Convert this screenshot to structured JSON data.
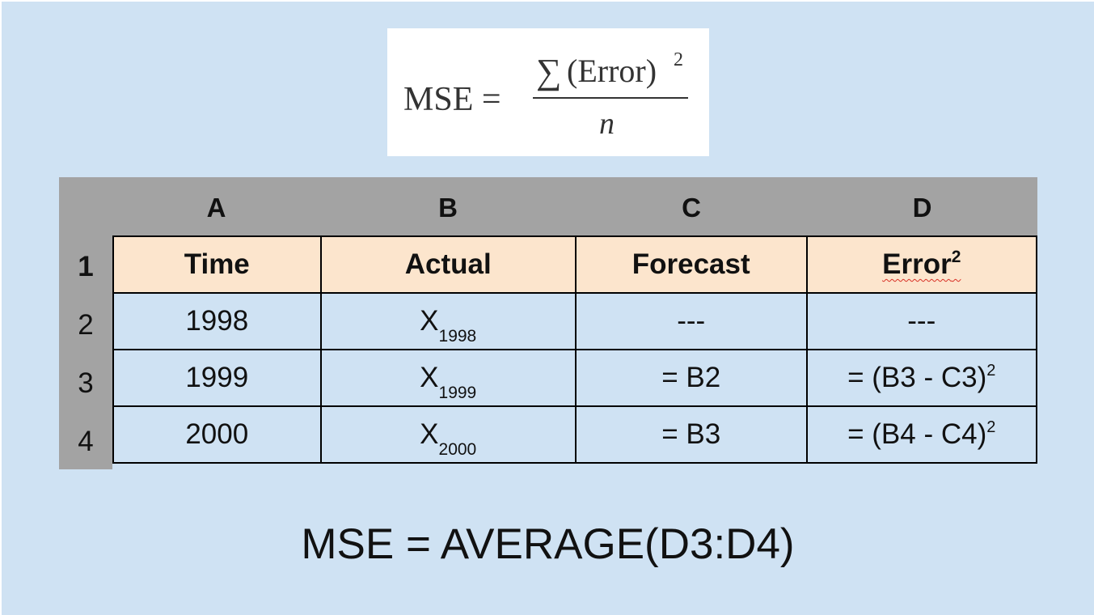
{
  "formula_image": {
    "lhs": "MSE =",
    "sigma": "∑",
    "numerator": "(Error)",
    "exponent": "2",
    "denominator": "n"
  },
  "spreadsheet": {
    "column_letters": [
      "A",
      "B",
      "C",
      "D"
    ],
    "row_numbers": [
      "1",
      "2",
      "3",
      "4"
    ],
    "header": {
      "time": "Time",
      "actual": "Actual",
      "forecast": "Forecast",
      "error_base": "Error",
      "error_sup": "2"
    },
    "rows": [
      {
        "time": "1998",
        "actual_base": "X",
        "actual_sub": "1998",
        "forecast": "---",
        "error_main": "---",
        "error_sup": ""
      },
      {
        "time": "1999",
        "actual_base": "X",
        "actual_sub": "1999",
        "forecast": "= B2",
        "error_main": "= (B3 - C3)",
        "error_sup": "2"
      },
      {
        "time": "2000",
        "actual_base": "X",
        "actual_sub": "2000",
        "forecast": "= B3",
        "error_main": "= (B4 - C4)",
        "error_sup": "2"
      }
    ]
  },
  "bottom_formula": "MSE = AVERAGE(D3:D4)",
  "colors": {
    "slide_background": "#cfe2f3",
    "column_header_gray": "#a3a3a3",
    "header_row_fill": "#fce5cd",
    "spellcheck_squiggle": "#d93025"
  }
}
